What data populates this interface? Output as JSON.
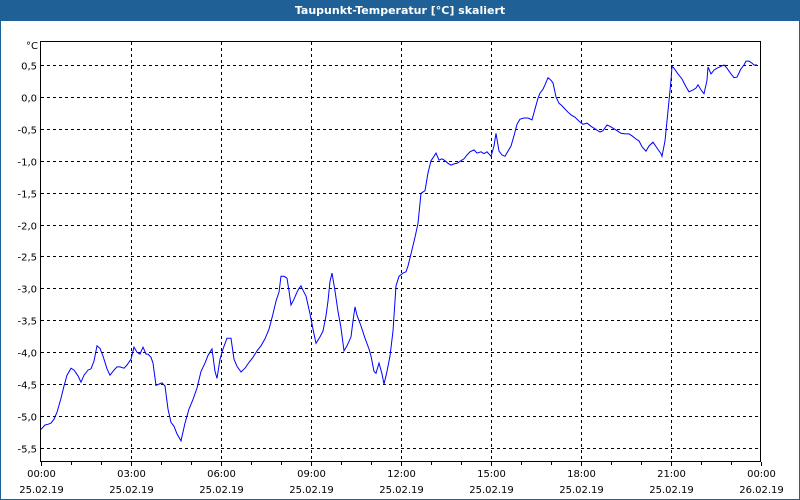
{
  "window": {
    "title": "Taupunkt-Temperatur [°C] skaliert"
  },
  "chart_data": {
    "type": "line",
    "title": "Taupunkt-Temperatur [°C] skaliert",
    "ylabel": "°C",
    "xlabel": "",
    "x_unit": "minutes since 25.02.19 00:00",
    "xlim": [
      0,
      1440
    ],
    "ylim": [
      -5.72,
      0.86
    ],
    "grid": true,
    "y_ticks": [
      {
        "value": 0.5,
        "label": "0,5"
      },
      {
        "value": 0.0,
        "label": "0,0"
      },
      {
        "value": -0.5,
        "label": "-0,5"
      },
      {
        "value": -1.0,
        "label": "-1,0"
      },
      {
        "value": -1.5,
        "label": "-1,5"
      },
      {
        "value": -2.0,
        "label": "-2,0"
      },
      {
        "value": -2.5,
        "label": "-2,5"
      },
      {
        "value": -3.0,
        "label": "-3,0"
      },
      {
        "value": -3.5,
        "label": "-3,5"
      },
      {
        "value": -4.0,
        "label": "-4,0"
      },
      {
        "value": -4.5,
        "label": "-4,5"
      },
      {
        "value": -5.0,
        "label": "-5,0"
      },
      {
        "value": -5.5,
        "label": "-5,5"
      }
    ],
    "x_ticks": [
      {
        "value": 0,
        "time": "00:00",
        "date": "25.02.19"
      },
      {
        "value": 180,
        "time": "03:00",
        "date": "25.02.19"
      },
      {
        "value": 360,
        "time": "06:00",
        "date": "25.02.19"
      },
      {
        "value": 540,
        "time": "09:00",
        "date": "25.02.19"
      },
      {
        "value": 720,
        "time": "12:00",
        "date": "25.02.19"
      },
      {
        "value": 900,
        "time": "15:00",
        "date": "25.02.19"
      },
      {
        "value": 1080,
        "time": "18:00",
        "date": "25.02.19"
      },
      {
        "value": 1260,
        "time": "21:00",
        "date": "25.02.19"
      },
      {
        "value": 1440,
        "time": "00:00",
        "date": "26.02.19"
      }
    ],
    "series": [
      {
        "name": "Taupunkt-Temperatur",
        "color": "#0000ff",
        "points": [
          [
            0,
            -5.21
          ],
          [
            8,
            -5.14
          ],
          [
            14,
            -5.13
          ],
          [
            20,
            -5.11
          ],
          [
            26,
            -5.05
          ],
          [
            32,
            -4.94
          ],
          [
            40,
            -4.72
          ],
          [
            46,
            -4.53
          ],
          [
            52,
            -4.36
          ],
          [
            60,
            -4.25
          ],
          [
            66,
            -4.28
          ],
          [
            74,
            -4.37
          ],
          [
            80,
            -4.47
          ],
          [
            86,
            -4.36
          ],
          [
            94,
            -4.28
          ],
          [
            100,
            -4.26
          ],
          [
            106,
            -4.14
          ],
          [
            112,
            -3.9
          ],
          [
            118,
            -3.94
          ],
          [
            124,
            -4.06
          ],
          [
            132,
            -4.26
          ],
          [
            138,
            -4.36
          ],
          [
            146,
            -4.28
          ],
          [
            152,
            -4.23
          ],
          [
            158,
            -4.23
          ],
          [
            166,
            -4.25
          ],
          [
            172,
            -4.2
          ],
          [
            180,
            -4.11
          ],
          [
            186,
            -3.92
          ],
          [
            192,
            -4.0
          ],
          [
            198,
            -4.03
          ],
          [
            204,
            -3.92
          ],
          [
            210,
            -4.03
          ],
          [
            214,
            -4.03
          ],
          [
            220,
            -4.08
          ],
          [
            224,
            -4.17
          ],
          [
            230,
            -4.52
          ],
          [
            236,
            -4.5
          ],
          [
            242,
            -4.48
          ],
          [
            248,
            -4.53
          ],
          [
            254,
            -4.89
          ],
          [
            260,
            -5.1
          ],
          [
            266,
            -5.16
          ],
          [
            272,
            -5.28
          ],
          [
            280,
            -5.39
          ],
          [
            288,
            -5.11
          ],
          [
            296,
            -4.89
          ],
          [
            304,
            -4.74
          ],
          [
            312,
            -4.56
          ],
          [
            320,
            -4.3
          ],
          [
            328,
            -4.17
          ],
          [
            334,
            -4.05
          ],
          [
            342,
            -3.95
          ],
          [
            348,
            -4.3
          ],
          [
            352,
            -4.41
          ],
          [
            358,
            -4.11
          ],
          [
            364,
            -3.95
          ],
          [
            372,
            -3.78
          ],
          [
            380,
            -3.78
          ],
          [
            386,
            -4.11
          ],
          [
            392,
            -4.22
          ],
          [
            400,
            -4.31
          ],
          [
            408,
            -4.25
          ],
          [
            416,
            -4.16
          ],
          [
            424,
            -4.08
          ],
          [
            432,
            -3.98
          ],
          [
            440,
            -3.9
          ],
          [
            448,
            -3.79
          ],
          [
            456,
            -3.64
          ],
          [
            464,
            -3.4
          ],
          [
            470,
            -3.2
          ],
          [
            476,
            -3.06
          ],
          [
            480,
            -2.81
          ],
          [
            486,
            -2.81
          ],
          [
            492,
            -2.84
          ],
          [
            496,
            -3.04
          ],
          [
            500,
            -3.26
          ],
          [
            506,
            -3.17
          ],
          [
            512,
            -3.06
          ],
          [
            516,
            -3.0
          ],
          [
            520,
            -2.96
          ],
          [
            524,
            -3.03
          ],
          [
            530,
            -3.12
          ],
          [
            538,
            -3.4
          ],
          [
            544,
            -3.64
          ],
          [
            550,
            -3.86
          ],
          [
            558,
            -3.76
          ],
          [
            564,
            -3.67
          ],
          [
            570,
            -3.43
          ],
          [
            574,
            -3.2
          ],
          [
            578,
            -2.89
          ],
          [
            582,
            -2.76
          ],
          [
            588,
            -3.04
          ],
          [
            594,
            -3.36
          ],
          [
            600,
            -3.62
          ],
          [
            606,
            -3.98
          ],
          [
            612,
            -3.9
          ],
          [
            620,
            -3.76
          ],
          [
            624,
            -3.51
          ],
          [
            628,
            -3.29
          ],
          [
            632,
            -3.42
          ],
          [
            640,
            -3.59
          ],
          [
            648,
            -3.78
          ],
          [
            656,
            -3.95
          ],
          [
            660,
            -4.06
          ],
          [
            666,
            -4.3
          ],
          [
            670,
            -4.33
          ],
          [
            676,
            -4.17
          ],
          [
            682,
            -4.34
          ],
          [
            686,
            -4.5
          ],
          [
            692,
            -4.3
          ],
          [
            698,
            -4.06
          ],
          [
            704,
            -3.67
          ],
          [
            710,
            -2.96
          ],
          [
            716,
            -2.81
          ],
          [
            724,
            -2.76
          ],
          [
            730,
            -2.74
          ],
          [
            734,
            -2.65
          ],
          [
            740,
            -2.46
          ],
          [
            748,
            -2.2
          ],
          [
            754,
            -1.98
          ],
          [
            760,
            -1.51
          ],
          [
            768,
            -1.47
          ],
          [
            774,
            -1.19
          ],
          [
            780,
            -1.0
          ],
          [
            786,
            -0.93
          ],
          [
            790,
            -0.88
          ],
          [
            796,
            -0.99
          ],
          [
            802,
            -0.97
          ],
          [
            808,
            -1.0
          ],
          [
            814,
            -1.04
          ],
          [
            820,
            -1.07
          ],
          [
            826,
            -1.05
          ],
          [
            832,
            -1.04
          ],
          [
            840,
            -1.0
          ],
          [
            846,
            -0.97
          ],
          [
            852,
            -0.91
          ],
          [
            858,
            -0.86
          ],
          [
            866,
            -0.83
          ],
          [
            872,
            -0.88
          ],
          [
            880,
            -0.86
          ],
          [
            886,
            -0.89
          ],
          [
            892,
            -0.86
          ],
          [
            900,
            -0.93
          ],
          [
            906,
            -0.77
          ],
          [
            910,
            -0.57
          ],
          [
            916,
            -0.85
          ],
          [
            922,
            -0.91
          ],
          [
            928,
            -0.93
          ],
          [
            934,
            -0.85
          ],
          [
            940,
            -0.77
          ],
          [
            946,
            -0.61
          ],
          [
            952,
            -0.43
          ],
          [
            958,
            -0.35
          ],
          [
            966,
            -0.33
          ],
          [
            974,
            -0.33
          ],
          [
            982,
            -0.36
          ],
          [
            988,
            -0.19
          ],
          [
            994,
            -0.02
          ],
          [
            998,
            0.06
          ],
          [
            1004,
            0.12
          ],
          [
            1008,
            0.19
          ],
          [
            1014,
            0.3
          ],
          [
            1020,
            0.26
          ],
          [
            1024,
            0.22
          ],
          [
            1030,
            0.0
          ],
          [
            1036,
            -0.1
          ],
          [
            1042,
            -0.14
          ],
          [
            1048,
            -0.19
          ],
          [
            1054,
            -0.24
          ],
          [
            1060,
            -0.28
          ],
          [
            1068,
            -0.32
          ],
          [
            1076,
            -0.38
          ],
          [
            1084,
            -0.43
          ],
          [
            1092,
            -0.41
          ],
          [
            1100,
            -0.46
          ],
          [
            1108,
            -0.5
          ],
          [
            1118,
            -0.55
          ],
          [
            1124,
            -0.53
          ],
          [
            1132,
            -0.44
          ],
          [
            1138,
            -0.46
          ],
          [
            1146,
            -0.5
          ],
          [
            1152,
            -0.53
          ],
          [
            1160,
            -0.57
          ],
          [
            1168,
            -0.58
          ],
          [
            1176,
            -0.58
          ],
          [
            1182,
            -0.61
          ],
          [
            1190,
            -0.66
          ],
          [
            1196,
            -0.69
          ],
          [
            1202,
            -0.78
          ],
          [
            1210,
            -0.85
          ],
          [
            1216,
            -0.77
          ],
          [
            1224,
            -0.71
          ],
          [
            1232,
            -0.8
          ],
          [
            1240,
            -0.89
          ],
          [
            1242,
            -0.93
          ],
          [
            1248,
            -0.69
          ],
          [
            1254,
            -0.22
          ],
          [
            1260,
            0.26
          ],
          [
            1262,
            0.48
          ],
          [
            1266,
            0.45
          ],
          [
            1274,
            0.36
          ],
          [
            1282,
            0.28
          ],
          [
            1290,
            0.16
          ],
          [
            1296,
            0.08
          ],
          [
            1304,
            0.11
          ],
          [
            1310,
            0.14
          ],
          [
            1314,
            0.19
          ],
          [
            1320,
            0.11
          ],
          [
            1326,
            0.05
          ],
          [
            1332,
            0.26
          ],
          [
            1334,
            0.47
          ],
          [
            1340,
            0.36
          ],
          [
            1346,
            0.42
          ],
          [
            1352,
            0.45
          ],
          [
            1360,
            0.48
          ],
          [
            1366,
            0.5
          ],
          [
            1372,
            0.45
          ],
          [
            1380,
            0.36
          ],
          [
            1386,
            0.3
          ],
          [
            1392,
            0.31
          ],
          [
            1400,
            0.44
          ],
          [
            1406,
            0.5
          ],
          [
            1410,
            0.56
          ],
          [
            1416,
            0.56
          ],
          [
            1422,
            0.53
          ],
          [
            1426,
            0.5
          ],
          [
            1432,
            0.5
          ]
        ]
      }
    ]
  }
}
